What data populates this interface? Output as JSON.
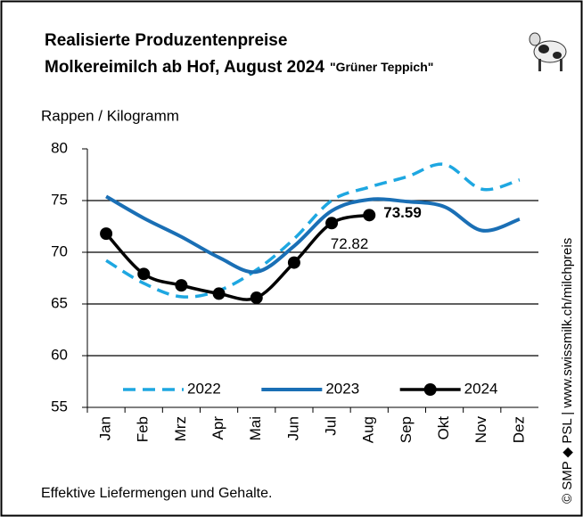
{
  "chart_data": {
    "type": "line",
    "title": [
      "Realisierte Produzentenpreise",
      "Molkereimilch ab Hof, August 2024"
    ],
    "subtitle": "\"Grüner Teppich\"",
    "y_label": "Rappen / Kilogramm",
    "footnote": "Effektive Liefermengen und Gehalte.",
    "source": "© SMP ◆ PSL | www.swissmilk.ch/milchpreis",
    "categories": [
      "Jan",
      "Feb",
      "Mrz",
      "Apr",
      "Mai",
      "Jun",
      "Jul",
      "Aug",
      "Sep",
      "Okt",
      "Nov",
      "Dez"
    ],
    "series": [
      {
        "name": "2022",
        "color": "#1ea7e1",
        "style": "dashed",
        "values": [
          69.2,
          67.0,
          65.7,
          66.3,
          68.3,
          71.3,
          75.0,
          76.3,
          77.3,
          78.5,
          76.1,
          77.0
        ]
      },
      {
        "name": "2023",
        "color": "#1a6fb5",
        "style": "solid",
        "values": [
          75.4,
          73.3,
          71.5,
          69.5,
          68.1,
          70.6,
          74.0,
          75.1,
          74.9,
          74.4,
          72.1,
          73.2
        ]
      },
      {
        "name": "2024",
        "color": "#000000",
        "style": "markers",
        "values": [
          71.8,
          67.9,
          66.8,
          66.0,
          65.6,
          69.0,
          72.82,
          73.59,
          null,
          null,
          null,
          null
        ],
        "value_labels": [
          null,
          null,
          null,
          null,
          null,
          null,
          "72.82",
          "73.59",
          null,
          null,
          null,
          null
        ]
      }
    ],
    "ylim": [
      55,
      80
    ],
    "yticks": [
      55,
      60,
      65,
      70,
      75,
      80
    ],
    "grid": true,
    "legend": "lower center"
  }
}
